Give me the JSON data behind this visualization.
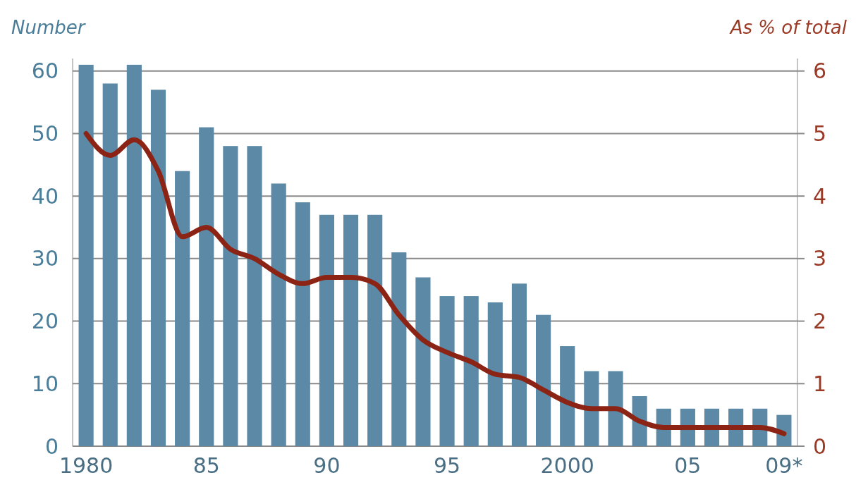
{
  "chart_data": {
    "type": "bar",
    "ylabel": "Number",
    "y2label": "As % of total",
    "categories": [
      "1980",
      null,
      null,
      null,
      null,
      "85",
      null,
      null,
      null,
      null,
      "90",
      null,
      null,
      null,
      null,
      "95",
      null,
      null,
      null,
      null,
      "2000",
      null,
      null,
      null,
      null,
      "05",
      null,
      null,
      null,
      "09*"
    ],
    "series": [
      {
        "color": "#5b89a6",
        "values": [
          61,
          58,
          61,
          57,
          44,
          51,
          48,
          48,
          42,
          39,
          37,
          37,
          37,
          31,
          27,
          24,
          24,
          23,
          26,
          21,
          16,
          12,
          12,
          8,
          6,
          6,
          6,
          6,
          6,
          5
        ]
      },
      {
        "type": "line",
        "axis": "y2",
        "color": "#8b2415",
        "values": [
          5.0,
          4.65,
          4.9,
          4.4,
          3.35,
          3.5,
          3.15,
          3.0,
          2.75,
          2.6,
          2.7,
          2.7,
          2.6,
          2.1,
          1.7,
          1.5,
          1.35,
          1.15,
          1.1,
          0.9,
          0.7,
          0.6,
          0.6,
          0.4,
          0.3,
          0.3,
          0.3,
          0.3,
          0.3,
          0.2
        ]
      }
    ],
    "ylim": [
      0,
      62
    ],
    "yticks": [
      0,
      10,
      20,
      30,
      40,
      50,
      60
    ],
    "y2lim": [
      0,
      6.2
    ],
    "y2ticks": [
      0,
      1,
      2,
      3,
      4,
      5,
      6
    ],
    "grid": "y"
  }
}
